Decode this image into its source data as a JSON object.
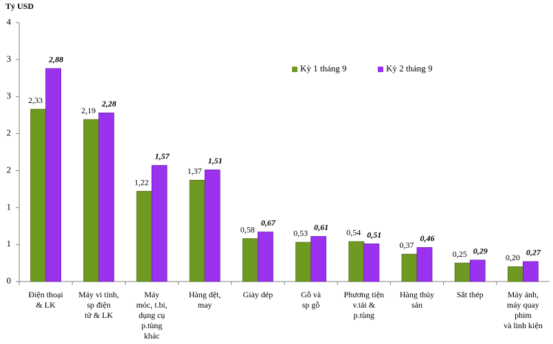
{
  "chart_data": {
    "type": "bar",
    "y_axis_label": "Tỷ USD",
    "categories": [
      [
        "Điện thoại",
        "& LK"
      ],
      [
        "Máy vi tính,",
        "sp điện",
        "tử & LK"
      ],
      [
        "Máy",
        "móc, t.bi,",
        "dụng cụ",
        "p.tùng",
        "khác"
      ],
      [
        "Hàng dệt,",
        "may"
      ],
      [
        "Giày dép"
      ],
      [
        "Gỗ và",
        "sp gỗ"
      ],
      [
        "Phương tiện",
        "v.tải &",
        "p.tùng"
      ],
      [
        "Hàng thủy",
        "sản"
      ],
      [
        "Sắt thép"
      ],
      [
        "Máy ảnh,",
        "máy quay",
        "phim",
        "và linh kiện"
      ]
    ],
    "series": [
      {
        "name": "Kỳ 1 tháng 9",
        "color": "#6e9a22",
        "values": [
          2.33,
          2.19,
          1.22,
          1.37,
          0.58,
          0.53,
          0.54,
          0.37,
          0.25,
          0.2
        ],
        "value_labels": [
          "2,33",
          "2,19",
          "1,22",
          "1,37",
          "0,58",
          "0,53",
          "0,54",
          "0,37",
          "0,25",
          "0,20"
        ]
      },
      {
        "name": "Kỳ 2 tháng 9",
        "color": "#9a32f0",
        "values": [
          2.88,
          2.28,
          1.57,
          1.51,
          0.67,
          0.61,
          0.51,
          0.46,
          0.29,
          0.27
        ],
        "value_labels": [
          "2,88",
          "2,28",
          "1,57",
          "1,51",
          "0,67",
          "0,61",
          "0,51",
          "0,46",
          "0,29",
          "0,27"
        ]
      }
    ],
    "ylim": [
      0,
      3.5
    ],
    "yticks": [
      0,
      {
        "value": 0.5,
        "label": "1"
      },
      1,
      {
        "value": 1.5,
        "label": "2"
      },
      2,
      {
        "value": 2.5,
        "label": "3"
      },
      3,
      {
        "value": 3.5,
        "label": "4"
      }
    ],
    "legend": "upper right"
  }
}
